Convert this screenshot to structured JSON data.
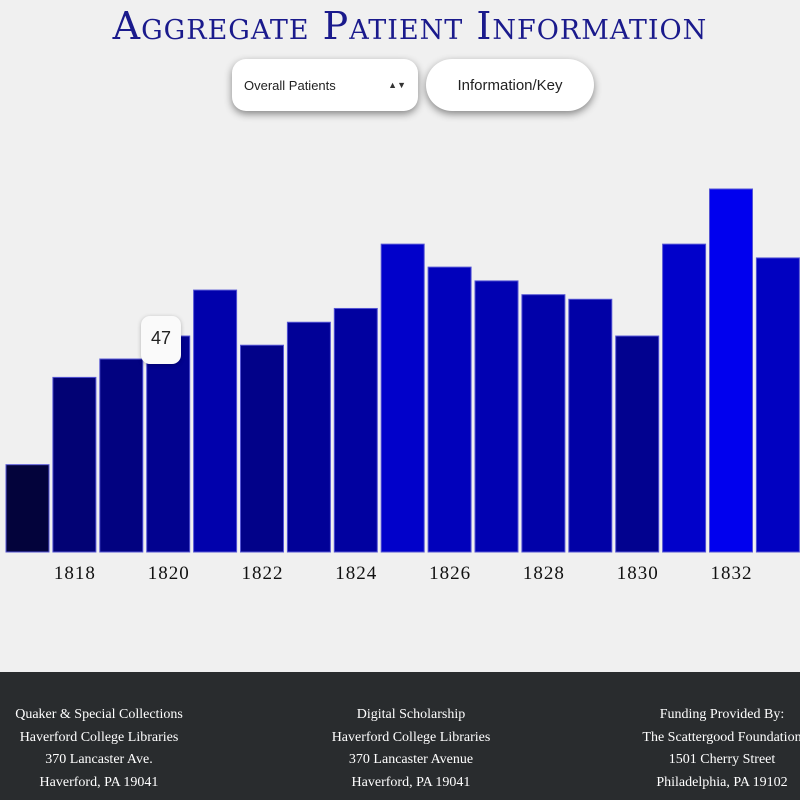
{
  "header": {
    "title": "Aggregate Patient Information"
  },
  "controls": {
    "select_value": "Overall Patients",
    "info_button_label": "Information/Key"
  },
  "tooltip": {
    "value": "47"
  },
  "chart_data": {
    "type": "bar",
    "title": "",
    "xlabel": "",
    "ylabel": "",
    "categories": [
      "1817",
      "1818",
      "1819",
      "1820",
      "1821",
      "1822",
      "1823",
      "1824",
      "1825",
      "1826",
      "1827",
      "1828",
      "1829",
      "1830",
      "1831",
      "1832",
      "1833"
    ],
    "values": [
      19,
      38,
      42,
      47,
      57,
      45,
      50,
      53,
      67,
      62,
      59,
      56,
      55,
      47,
      67,
      79,
      64
    ],
    "tick_labels": [
      "1818",
      "1820",
      "1822",
      "1824",
      "1826",
      "1828",
      "1830",
      "1832"
    ],
    "ylim": [
      0,
      80
    ],
    "grid": false,
    "colors": {
      "low": "#03033b",
      "high": "#0000ee",
      "bar_border": "#5555d4"
    }
  },
  "footer": {
    "col1": [
      "Quaker & Special Collections",
      "Haverford College Libraries",
      "370 Lancaster Ave.",
      "Haverford, PA 19041"
    ],
    "col2": [
      "Digital Scholarship",
      "Haverford College Libraries",
      "370 Lancaster Avenue",
      "Haverford, PA 19041"
    ],
    "col3": [
      "Funding Provided By:",
      "The Scattergood Foundation",
      "1501 Cherry Street",
      "Philadelphia, PA 19102"
    ]
  }
}
